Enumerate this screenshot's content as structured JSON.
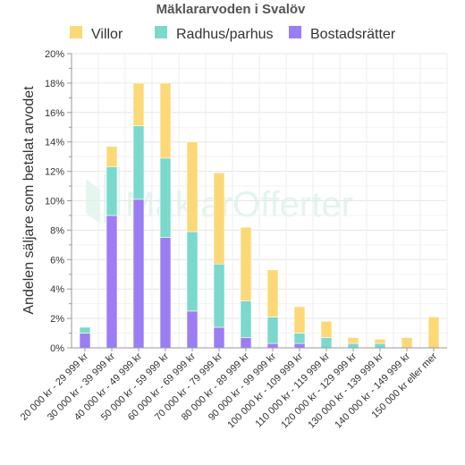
{
  "chart_data": {
    "type": "bar",
    "stacked": true,
    "title": "Mäklararvoden i Svalöv",
    "ylabel": "Andelen säljare som betalat arvodet",
    "xlabel": "",
    "ylim": [
      0,
      20
    ],
    "yticks": [
      "0%",
      "2%",
      "4%",
      "6%",
      "8%",
      "10%",
      "12%",
      "14%",
      "16%",
      "18%",
      "20%"
    ],
    "grid": true,
    "legend_position": "top",
    "categories": [
      "20 000 kr - 29 999 kr",
      "30 000 kr - 39 999 kr",
      "40 000 kr - 49 999 kr",
      "50 000 kr - 59 999 kr",
      "60 000 kr - 69 999 kr",
      "70 000 kr - 79 999 kr",
      "80 000 kr - 89 999 kr",
      "90 000 kr - 99 999 kr",
      "100 000 kr - 109 999 kr",
      "110 000 kr - 119 999 kr",
      "120 000 kr - 129 999 kr",
      "130 000 kr - 139 999 kr",
      "140 000 kr - 149 999 kr",
      "150 000 kr eller mer"
    ],
    "series": [
      {
        "name": "Bostadsrätter",
        "color": "#9b7ef3",
        "values": [
          1.0,
          9.0,
          10.1,
          7.5,
          2.5,
          1.4,
          0.7,
          0.3,
          0.3,
          0,
          0,
          0,
          0,
          0
        ]
      },
      {
        "name": "Radhus/parhus",
        "color": "#7ad9cc",
        "values": [
          0.4,
          3.3,
          5.0,
          5.4,
          5.4,
          4.3,
          2.5,
          1.8,
          0.7,
          0.7,
          0.3,
          0.3,
          0,
          0
        ]
      },
      {
        "name": "Villor",
        "color": "#fcd877",
        "values": [
          0,
          1.4,
          2.9,
          5.1,
          6.1,
          6.2,
          5.0,
          3.2,
          1.8,
          1.1,
          0.4,
          0.3,
          0.7,
          2.1
        ]
      }
    ],
    "legend_order": [
      "Villor",
      "Radhus/parhus",
      "Bostadsrätter"
    ]
  },
  "watermark": "MäklarOfferter"
}
